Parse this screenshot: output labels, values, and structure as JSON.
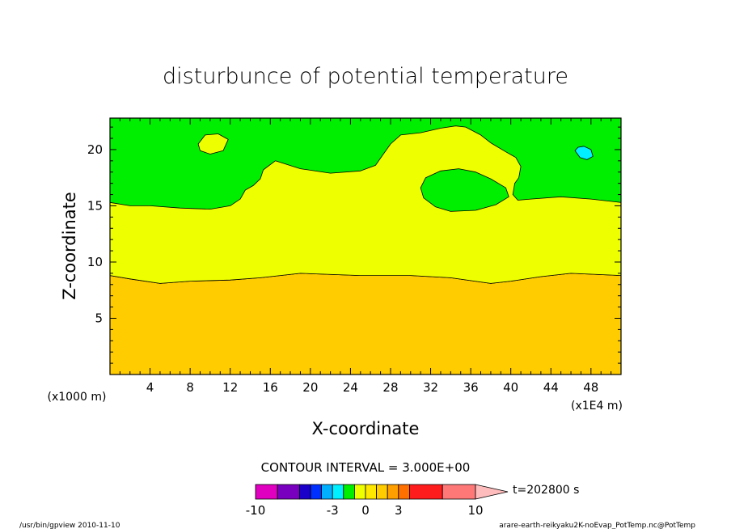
{
  "chart_data": {
    "type": "heatmap",
    "title": "disturbunce of potential temperature",
    "xlabel": "X-coordinate",
    "ylabel": "Z-coordinate",
    "x_unit_left": "(x1000 m)",
    "x_unit_right": "(x1E4 m)",
    "xlim": [
      0,
      51
    ],
    "ylim": [
      0,
      22.8
    ],
    "x_ticks": [
      "4",
      "8",
      "12",
      "16",
      "20",
      "24",
      "28",
      "32",
      "36",
      "40",
      "44",
      "48"
    ],
    "y_ticks": [
      "5",
      "10",
      "15",
      "20"
    ],
    "contour_interval_text": "CONTOUR INTERVAL = 3.000E+00",
    "time_text": "t=202800 s",
    "footer_left": "/usr/bin/gpview   2010-11-10",
    "footer_right": "arare-earth-reikyaku2K-noEvap_PotTemp.nc@PotTemp",
    "colorbar": {
      "tick_labels": [
        {
          "label": "-10",
          "at": -10
        },
        {
          "label": "-3",
          "at": -3
        },
        {
          "label": "0",
          "at": 0
        },
        {
          "label": "3",
          "at": 3
        },
        {
          "label": "10",
          "at": 10
        }
      ],
      "bins": [
        {
          "from": -10,
          "to": -8,
          "color": "#e000c0"
        },
        {
          "from": -8,
          "to": -6,
          "color": "#7a00c0"
        },
        {
          "from": -6,
          "to": -5,
          "color": "#1a00c8"
        },
        {
          "from": -5,
          "to": -4,
          "color": "#0030ff"
        },
        {
          "from": -4,
          "to": -3,
          "color": "#00b0ff"
        },
        {
          "from": -3,
          "to": -2,
          "color": "#00f0ff"
        },
        {
          "from": -2,
          "to": -1,
          "color": "#00ee00"
        },
        {
          "from": -1,
          "to": 0,
          "color": "#eeff00"
        },
        {
          "from": 0,
          "to": 1,
          "color": "#ffe800"
        },
        {
          "from": 1,
          "to": 2,
          "color": "#ffcc00"
        },
        {
          "from": 2,
          "to": 3,
          "color": "#ffa000"
        },
        {
          "from": 3,
          "to": 4,
          "color": "#ff7000"
        },
        {
          "from": 4,
          "to": 7,
          "color": "#ff1c1c"
        },
        {
          "from": 7,
          "to": 10,
          "color": "#ff7878"
        }
      ],
      "overflow_color": "#ffbcbc"
    },
    "regions": [
      {
        "name": "orange-lower",
        "color": "#ffcc00",
        "points": [
          [
            0,
            0
          ],
          [
            51,
            0
          ],
          [
            51,
            8.8
          ],
          [
            46,
            9.0
          ],
          [
            43,
            8.7
          ],
          [
            40,
            8.3
          ],
          [
            38,
            8.1
          ],
          [
            34,
            8.6
          ],
          [
            30,
            8.8
          ],
          [
            25,
            8.8
          ],
          [
            19,
            9.0
          ],
          [
            15,
            8.6
          ],
          [
            12,
            8.4
          ],
          [
            8,
            8.3
          ],
          [
            5,
            8.1
          ],
          [
            2,
            8.5
          ],
          [
            0,
            8.8
          ]
        ]
      },
      {
        "name": "yellow-middle",
        "color": "#eeff00",
        "points": [
          [
            0,
            8.8
          ],
          [
            2,
            8.5
          ],
          [
            5,
            8.1
          ],
          [
            8,
            8.3
          ],
          [
            12,
            8.4
          ],
          [
            15,
            8.6
          ],
          [
            19,
            9.0
          ],
          [
            25,
            8.8
          ],
          [
            30,
            8.8
          ],
          [
            34,
            8.6
          ],
          [
            38,
            8.1
          ],
          [
            40,
            8.3
          ],
          [
            43,
            8.7
          ],
          [
            46,
            9.0
          ],
          [
            51,
            8.8
          ],
          [
            51,
            15.3
          ],
          [
            48,
            15.6
          ],
          [
            45,
            15.8
          ],
          [
            42,
            15.6
          ],
          [
            40.7,
            15.5
          ],
          [
            40.2,
            16.0
          ],
          [
            40.4,
            17.0
          ],
          [
            40.8,
            17.5
          ],
          [
            41,
            18.5
          ],
          [
            40.5,
            19.3
          ],
          [
            39.5,
            19.8
          ],
          [
            38,
            20.6
          ],
          [
            37,
            21.3
          ],
          [
            35.5,
            22.0
          ],
          [
            34.5,
            22.1
          ],
          [
            33,
            21.9
          ],
          [
            31,
            21.5
          ],
          [
            29,
            21.3
          ],
          [
            28,
            20.5
          ],
          [
            27.2,
            19.5
          ],
          [
            26.5,
            18.6
          ],
          [
            25,
            18.1
          ],
          [
            22,
            17.9
          ],
          [
            19,
            18.3
          ],
          [
            16.5,
            19.0
          ],
          [
            15.3,
            18.2
          ],
          [
            15,
            17.4
          ],
          [
            14.3,
            16.8
          ],
          [
            13.5,
            16.4
          ],
          [
            13,
            15.6
          ],
          [
            12,
            15.0
          ],
          [
            10,
            14.7
          ],
          [
            7,
            14.8
          ],
          [
            4,
            15.0
          ],
          [
            2,
            15.0
          ],
          [
            0,
            15.3
          ]
        ]
      },
      {
        "name": "green-pocket",
        "color": "#00ee00",
        "points": [
          [
            31,
            16.6
          ],
          [
            31.5,
            17.5
          ],
          [
            33,
            18.1
          ],
          [
            34.8,
            18.3
          ],
          [
            36.5,
            18.0
          ],
          [
            38,
            17.4
          ],
          [
            39.5,
            16.6
          ],
          [
            39.8,
            15.8
          ],
          [
            38.5,
            15.1
          ],
          [
            36.5,
            14.6
          ],
          [
            34,
            14.5
          ],
          [
            32.5,
            14.9
          ],
          [
            31.3,
            15.7
          ]
        ]
      },
      {
        "name": "yellow-island",
        "color": "#eeff00",
        "points": [
          [
            8.8,
            20.5
          ],
          [
            9.5,
            21.3
          ],
          [
            10.8,
            21.4
          ],
          [
            11.8,
            20.9
          ],
          [
            11.3,
            19.9
          ],
          [
            10,
            19.6
          ],
          [
            9,
            19.9
          ]
        ]
      },
      {
        "name": "cyan-island",
        "color": "#00f0ff",
        "points": [
          [
            46.4,
            19.9
          ],
          [
            46.9,
            19.3
          ],
          [
            47.6,
            19.1
          ],
          [
            48.2,
            19.4
          ],
          [
            48,
            20.0
          ],
          [
            47.3,
            20.3
          ],
          [
            46.7,
            20.2
          ]
        ]
      }
    ],
    "background_color": "#00ee00"
  }
}
